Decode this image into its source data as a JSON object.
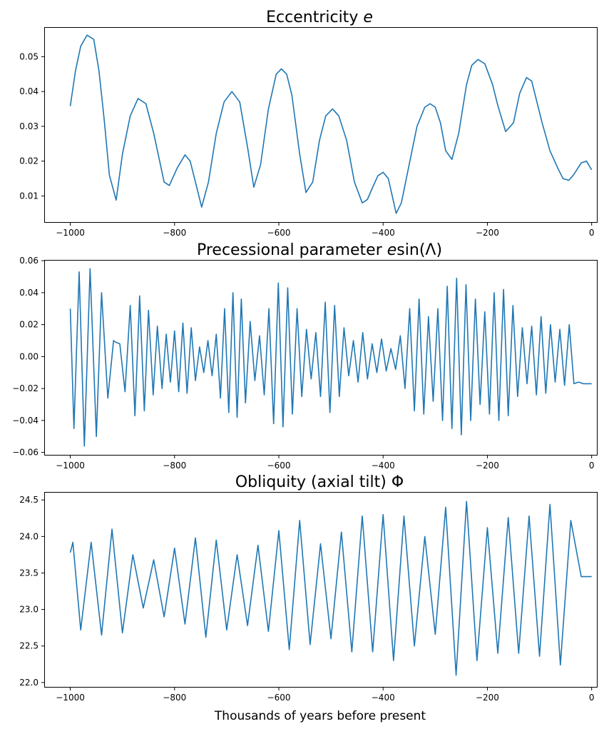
{
  "chart_data": [
    {
      "type": "line",
      "title": "Eccentricity e",
      "xlabel": "",
      "ylabel": "",
      "xlim": [
        -1050,
        10
      ],
      "ylim": [
        0.0025,
        0.0585
      ],
      "xticks": [
        -1000,
        -800,
        -600,
        -400,
        -200,
        0
      ],
      "xtick_labels": [
        "−1000",
        "−800",
        "−600",
        "−400",
        "−200",
        "0"
      ],
      "yticks": [
        0.01,
        0.02,
        0.03,
        0.04,
        0.05
      ],
      "ytick_labels": [
        "0.01",
        "0.02",
        "0.03",
        "0.04",
        "0.05"
      ],
      "grid": false,
      "color": "#1f77b4",
      "series": [
        {
          "x": [
            -1000,
            -990,
            -980,
            -968,
            -955,
            -945,
            -935,
            -925,
            -912,
            -900,
            -885,
            -870,
            -855,
            -840,
            -820,
            -810,
            -795,
            -780,
            -770,
            -760,
            -748,
            -735,
            -720,
            -705,
            -690,
            -675,
            -660,
            -648,
            -635,
            -620,
            -605,
            -595,
            -585,
            -575,
            -560,
            -548,
            -535,
            -522,
            -510,
            -497,
            -485,
            -470,
            -455,
            -440,
            -430,
            -420,
            -410,
            -400,
            -390,
            -375,
            -365,
            -350,
            -335,
            -320,
            -310,
            -300,
            -290,
            -280,
            -268,
            -255,
            -240,
            -230,
            -218,
            -205,
            -190,
            -180,
            -165,
            -150,
            -138,
            -125,
            -115,
            -105,
            -95,
            -80,
            -65,
            -55,
            -44,
            -35,
            -20,
            -10,
            0
          ],
          "y": [
            0.0358,
            0.046,
            0.053,
            0.0562,
            0.055,
            0.046,
            0.032,
            0.016,
            0.0088,
            0.022,
            0.033,
            0.038,
            0.0365,
            0.028,
            0.014,
            0.013,
            0.018,
            0.0218,
            0.02,
            0.014,
            0.0068,
            0.014,
            0.028,
            0.037,
            0.04,
            0.037,
            0.024,
            0.0125,
            0.019,
            0.035,
            0.045,
            0.0465,
            0.045,
            0.039,
            0.022,
            0.011,
            0.014,
            0.026,
            0.033,
            0.035,
            0.033,
            0.026,
            0.014,
            0.008,
            0.009,
            0.0125,
            0.0158,
            0.0168,
            0.015,
            0.005,
            0.008,
            0.019,
            0.03,
            0.0355,
            0.0365,
            0.0355,
            0.031,
            0.023,
            0.0205,
            0.028,
            0.042,
            0.0475,
            0.0492,
            0.048,
            0.042,
            0.036,
            0.0285,
            0.031,
            0.0395,
            0.044,
            0.043,
            0.037,
            0.031,
            0.023,
            0.018,
            0.015,
            0.0145,
            0.016,
            0.0195,
            0.02,
            0.0175
          ]
        }
      ]
    },
    {
      "type": "line",
      "title": "Precessional parameter esin(Λ)",
      "xlabel": "",
      "ylabel": "",
      "xlim": [
        -1050,
        10
      ],
      "ylim": [
        -0.0615,
        0.0605
      ],
      "xticks": [
        -1000,
        -800,
        -600,
        -400,
        -200,
        0
      ],
      "xtick_labels": [
        "−1000",
        "−800",
        "−600",
        "−400",
        "−200",
        "0"
      ],
      "yticks": [
        -0.06,
        -0.04,
        -0.02,
        0.0,
        0.02,
        0.04,
        0.06
      ],
      "ytick_labels": [
        "−0.06",
        "−0.04",
        "−0.02",
        "0.00",
        "0.02",
        "0.04",
        "0.06"
      ],
      "grid": false,
      "color": "#1f77b4",
      "series": [
        {
          "x": [
            -1000,
            -993,
            -983,
            -973,
            -962,
            -950,
            -940,
            -928,
            -917,
            -913,
            -905,
            -895,
            -885,
            -876,
            -867,
            -858,
            -850,
            -841,
            -833,
            -824,
            -816,
            -808,
            -800,
            -792,
            -784,
            -776,
            -768,
            -760,
            -752,
            -744,
            -736,
            -728,
            -720,
            -712,
            -704,
            -696,
            -688,
            -680,
            -672,
            -664,
            -655,
            -646,
            -637,
            -628,
            -619,
            -610,
            -601,
            -592,
            -583,
            -574,
            -565,
            -556,
            -547,
            -538,
            -529,
            -520,
            -511,
            -502,
            -493,
            -484,
            -475,
            -466,
            -457,
            -448,
            -439,
            -430,
            -421,
            -412,
            -403,
            -394,
            -385,
            -376,
            -367,
            -358,
            -349,
            -340,
            -331,
            -322,
            -313,
            -304,
            -295,
            -286,
            -277,
            -268,
            -259,
            -250,
            -241,
            -232,
            -223,
            -214,
            -205,
            -196,
            -187,
            -178,
            -169,
            -160,
            -151,
            -142,
            -133,
            -124,
            -115,
            -106,
            -97,
            -88,
            -79,
            -70,
            -61,
            -52,
            -43,
            -34,
            -25,
            -16,
            -8,
            0
          ],
          "y": [
            0.03,
            -0.045,
            0.053,
            -0.056,
            0.055,
            -0.05,
            0.04,
            -0.026,
            0.01,
            0.009,
            0.008,
            -0.022,
            0.032,
            -0.037,
            0.038,
            -0.034,
            0.029,
            -0.024,
            0.019,
            -0.02,
            0.014,
            -0.016,
            0.016,
            -0.022,
            0.021,
            -0.023,
            0.018,
            -0.015,
            0.006,
            -0.01,
            0.01,
            -0.012,
            0.014,
            -0.026,
            0.03,
            -0.035,
            0.04,
            -0.038,
            0.036,
            -0.029,
            0.022,
            -0.015,
            0.013,
            -0.024,
            0.03,
            -0.042,
            0.046,
            -0.044,
            0.043,
            -0.036,
            0.03,
            -0.025,
            0.017,
            -0.014,
            0.015,
            -0.025,
            0.034,
            -0.035,
            0.032,
            -0.025,
            0.018,
            -0.012,
            0.01,
            -0.016,
            0.015,
            -0.014,
            0.008,
            -0.01,
            0.011,
            -0.009,
            0.005,
            -0.008,
            0.013,
            -0.02,
            0.03,
            -0.034,
            0.036,
            -0.036,
            0.025,
            -0.028,
            0.03,
            -0.04,
            0.044,
            -0.045,
            0.049,
            -0.049,
            0.045,
            -0.04,
            0.036,
            -0.03,
            0.028,
            -0.036,
            0.04,
            -0.04,
            0.042,
            -0.037,
            0.032,
            -0.025,
            0.018,
            -0.017,
            0.019,
            -0.024,
            0.025,
            -0.023,
            0.02,
            -0.016,
            0.017,
            -0.018,
            0.02,
            -0.017,
            -0.016,
            -0.017,
            -0.017,
            -0.017
          ]
        }
      ]
    },
    {
      "type": "line",
      "title": "Obliquity (axial tilt) Φ",
      "xlabel": "Thousands of years before present",
      "ylabel": "",
      "xlim": [
        -1050,
        10
      ],
      "ylim": [
        21.94,
        24.61
      ],
      "xticks": [
        -1000,
        -800,
        -600,
        -400,
        -200,
        0
      ],
      "xtick_labels": [
        "−1000",
        "−800",
        "−600",
        "−400",
        "−200",
        "0"
      ],
      "yticks": [
        22.0,
        22.5,
        23.0,
        23.5,
        24.0,
        24.5
      ],
      "ytick_labels": [
        "22.0",
        "22.5",
        "23.0",
        "23.5",
        "24.0",
        "24.5"
      ],
      "grid": false,
      "color": "#1f77b4",
      "series": [
        {
          "x": [
            -1000,
            -995,
            -980,
            -960,
            -940,
            -920,
            -900,
            -880,
            -860,
            -840,
            -820,
            -800,
            -780,
            -760,
            -740,
            -720,
            -700,
            -680,
            -660,
            -640,
            -620,
            -600,
            -580,
            -560,
            -540,
            -520,
            -500,
            -480,
            -460,
            -440,
            -420,
            -400,
            -380,
            -360,
            -340,
            -320,
            -300,
            -280,
            -260,
            -240,
            -220,
            -200,
            -180,
            -160,
            -140,
            -120,
            -100,
            -80,
            -60,
            -40,
            -20,
            -10,
            0
          ],
          "y": [
            23.78,
            23.92,
            22.72,
            23.92,
            22.65,
            24.1,
            22.68,
            23.75,
            23.02,
            23.68,
            22.9,
            23.84,
            22.8,
            23.98,
            22.62,
            23.95,
            22.72,
            23.75,
            22.78,
            23.88,
            22.7,
            24.08,
            22.45,
            24.22,
            22.52,
            23.9,
            22.6,
            24.06,
            22.42,
            24.28,
            22.42,
            24.3,
            22.3,
            24.28,
            22.5,
            24.0,
            22.66,
            24.4,
            22.1,
            24.48,
            22.3,
            24.12,
            22.4,
            24.26,
            22.4,
            24.28,
            22.36,
            24.44,
            22.24,
            24.22,
            23.45,
            23.45,
            23.45
          ]
        }
      ]
    }
  ]
}
